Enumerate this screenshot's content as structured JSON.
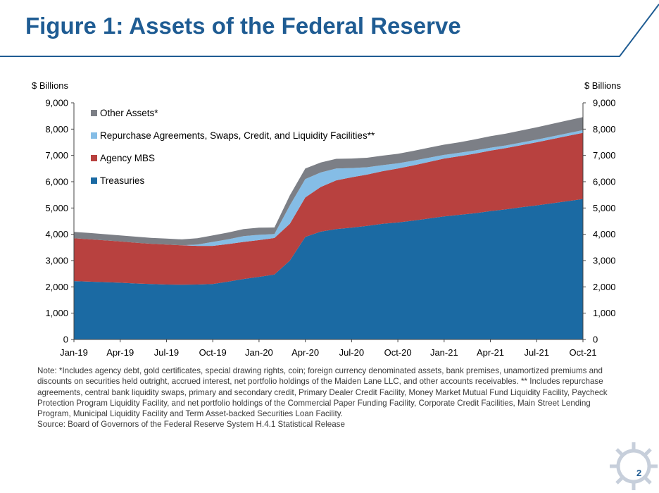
{
  "title": "Figure 1: Assets of the Federal Reserve",
  "page_number": "2",
  "colors": {
    "title": "#1f5c93",
    "treasuries": "#1b6aa3",
    "agency_mbs": "#b8413f",
    "repo": "#85bde6",
    "other": "#7c7f86"
  },
  "chart_data": {
    "type": "area",
    "stacked": true,
    "left_axis_label": "$ Billions",
    "right_axis_label": "$ Billions",
    "ylim": [
      0,
      9000
    ],
    "yticks": [
      "0",
      "1,000",
      "2,000",
      "3,000",
      "4,000",
      "5,000",
      "6,000",
      "7,000",
      "8,000",
      "9,000"
    ],
    "xlabels": [
      "Jan-19",
      "Apr-19",
      "Jul-19",
      "Oct-19",
      "Jan-20",
      "Apr-20",
      "Jul-20",
      "Oct-20",
      "Jan-21",
      "Apr-21",
      "Jul-21",
      "Oct-21"
    ],
    "legend_position": "top-left",
    "x": [
      "2019-01",
      "2019-02",
      "2019-03",
      "2019-04",
      "2019-05",
      "2019-06",
      "2019-07",
      "2019-08",
      "2019-09",
      "2019-10",
      "2019-11",
      "2019-12",
      "2020-01",
      "2020-02",
      "2020-03",
      "2020-04",
      "2020-05",
      "2020-06",
      "2020-07",
      "2020-08",
      "2020-09",
      "2020-10",
      "2020-11",
      "2020-12",
      "2021-01",
      "2021-02",
      "2021-03",
      "2021-04",
      "2021-05",
      "2021-06",
      "2021-07",
      "2021-08",
      "2021-09",
      "2021-10"
    ],
    "series": [
      {
        "name": "Treasuries",
        "values": [
          2220,
          2200,
          2180,
          2160,
          2130,
          2110,
          2090,
          2080,
          2090,
          2110,
          2200,
          2300,
          2380,
          2470,
          3000,
          3900,
          4100,
          4200,
          4250,
          4320,
          4400,
          4450,
          4520,
          4600,
          4680,
          4740,
          4800,
          4880,
          4950,
          5030,
          5100,
          5180,
          5260,
          5340
        ]
      },
      {
        "name": "Agency MBS",
        "values": [
          1630,
          1610,
          1590,
          1570,
          1550,
          1530,
          1520,
          1500,
          1470,
          1450,
          1430,
          1410,
          1400,
          1390,
          1400,
          1500,
          1700,
          1850,
          1920,
          1950,
          2000,
          2050,
          2100,
          2150,
          2200,
          2230,
          2270,
          2300,
          2330,
          2360,
          2400,
          2440,
          2480,
          2520
        ]
      },
      {
        "name": "Repurchase Agreements, Swaps, Credit, and Liquidity Facilities**",
        "values": [
          0,
          0,
          0,
          0,
          0,
          0,
          0,
          0,
          50,
          150,
          180,
          220,
          200,
          150,
          700,
          700,
          550,
          450,
          350,
          280,
          230,
          200,
          180,
          160,
          140,
          130,
          120,
          110,
          100,
          100,
          100,
          100,
          100,
          100
        ]
      },
      {
        "name": "Other Assets*",
        "values": [
          240,
          240,
          235,
          230,
          230,
          225,
          225,
          225,
          240,
          250,
          260,
          270,
          270,
          250,
          380,
          400,
          380,
          370,
          360,
          360,
          360,
          360,
          370,
          380,
          390,
          400,
          420,
          440,
          450,
          460,
          470,
          480,
          490,
          500
        ]
      }
    ]
  },
  "notes": {
    "note": "Note: *Includes agency debt, gold certificates, special drawing rights, coin; foreign currency denominated assets, bank premises, unamortized premiums and discounts on securities held outright, accrued interest, net portfolio holdings of the Maiden Lane LLC, and other accounts receivables. ** Includes repurchase agreements, central bank liquidity swaps, primary and secondary credit, Primary Dealer Credit Facility, Money Market Mutual Fund Liquidity Facility, Paycheck Protection Program Liquidity Facility, and net portfolio holdings of the Commercial Paper Funding Facility, Corporate Credit Facilities, Main Street Lending Program, Municipal Liquidity Facility and Term Asset-backed Securities Loan Facility.",
    "source": "Source: Board of Governors of the Federal Reserve System H.4.1 Statistical Release"
  }
}
